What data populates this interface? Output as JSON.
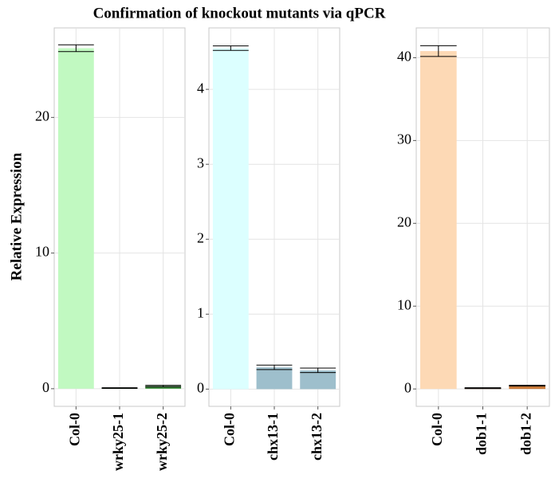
{
  "chart_data": [
    {
      "type": "bar",
      "title": "Confirmation of knockout mutants via qPCR",
      "ylabel": "Relative Expression",
      "categories": [
        "Col-0",
        "wrky25-1",
        "wrky25-2"
      ],
      "values": [
        25.1,
        0.05,
        0.2
      ],
      "errors": [
        0.25,
        0.02,
        0.05
      ],
      "colors": [
        "#c1f9c1",
        "#1f4f1f",
        "#3c8c3c"
      ],
      "ylim": [
        -1.3,
        26.6
      ],
      "yticks": [
        0,
        10,
        20
      ],
      "grid": true
    },
    {
      "type": "bar",
      "categories": [
        "Col-0",
        "chx13-1",
        "chx13-2"
      ],
      "values": [
        4.55,
        0.29,
        0.25
      ],
      "errors": [
        0.03,
        0.03,
        0.03
      ],
      "colors": [
        "#dcffff",
        "#9ebfcc",
        "#9ebfcc"
      ],
      "ylim": [
        -0.23,
        4.82
      ],
      "yticks": [
        0,
        1,
        2,
        3,
        4
      ],
      "grid": true
    },
    {
      "type": "bar",
      "categories": [
        "Col-0",
        "dob1-1",
        "dob1-2"
      ],
      "values": [
        40.8,
        0.1,
        0.4
      ],
      "errors": [
        0.65,
        0.05,
        0.05
      ],
      "colors": [
        "#fdd9b5",
        "#4a2400",
        "#c87a3a"
      ],
      "ylim": [
        -2.1,
        43.6
      ],
      "yticks": [
        0,
        10,
        20,
        30,
        40
      ],
      "grid": true
    }
  ]
}
